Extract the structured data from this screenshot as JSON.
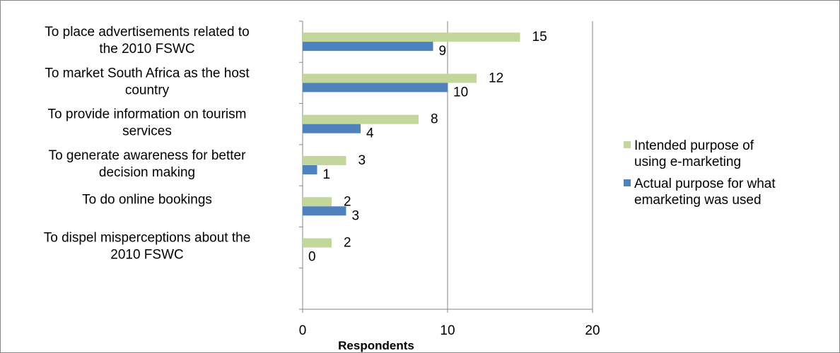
{
  "chart_data": {
    "type": "bar",
    "orientation": "horizontal",
    "title": "",
    "xlabel": "Respondents",
    "ylabel": "",
    "xlim": [
      0,
      20
    ],
    "xticks": [
      0,
      10,
      20
    ],
    "grid": "vertical-major",
    "legend_position": "right",
    "categories": [
      [
        "To place advertisements related to",
        "the 2010 FSWC"
      ],
      [
        "To market South Africa as the host",
        "country"
      ],
      [
        "To provide information on tourism",
        "services"
      ],
      [
        "To generate awareness for better",
        "decision making"
      ],
      [
        "To do online bookings"
      ],
      [
        "To dispel misperceptions about the",
        "2010 FSWC"
      ]
    ],
    "series": [
      {
        "name_lines": [
          "Intended purpose of",
          "using e-marketing"
        ],
        "color": "#c3d69b",
        "values": [
          15,
          12,
          8,
          3,
          2,
          2
        ]
      },
      {
        "name_lines": [
          "Actual purpose for what",
          "emarketing was used"
        ],
        "color": "#4f81bd",
        "values": [
          9,
          10,
          4,
          1,
          3,
          0
        ]
      }
    ]
  }
}
